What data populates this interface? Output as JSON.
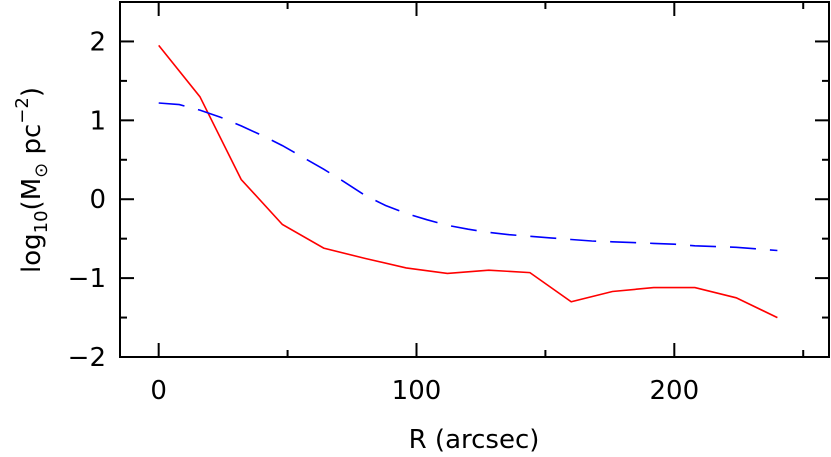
{
  "chart_data": {
    "type": "line",
    "title": "",
    "xlabel": "R (arcsec)",
    "ylabel": {
      "prefix": "log",
      "sub": "10",
      "mid": "(M",
      "sun": "⊙",
      "unit": " pc",
      "sup": "−2",
      "suffix": ")"
    },
    "xlim": [
      -15,
      260
    ],
    "ylim": [
      -2,
      2.5
    ],
    "x_ticks_major": [
      0,
      100,
      200
    ],
    "x_ticks_minor": [
      50,
      150,
      250
    ],
    "x_tick_labels": [
      "0",
      "100",
      "200"
    ],
    "y_ticks_major": [
      -2,
      -1,
      0,
      1,
      2
    ],
    "y_ticks_minor": [
      -1.5,
      -0.5,
      0.5,
      1.5
    ],
    "y_tick_labels": [
      "−2",
      "−1",
      "0",
      "1",
      "2"
    ],
    "grid": false,
    "series": [
      {
        "color": "#ff0000",
        "dash": "solid",
        "x": [
          0,
          16,
          32,
          48,
          64,
          80,
          96,
          112,
          128,
          144,
          160,
          176,
          192,
          208,
          224,
          240
        ],
        "y": [
          1.95,
          1.3,
          0.25,
          -0.32,
          -0.62,
          -0.75,
          -0.87,
          -0.94,
          -0.9,
          -0.93,
          -1.3,
          -1.17,
          -1.12,
          -1.12,
          -1.25,
          -1.5
        ]
      },
      {
        "color": "#0000ff",
        "dash": "dashed",
        "x": [
          0,
          8,
          16,
          24,
          32,
          40,
          48,
          56,
          64,
          72,
          80,
          88,
          96,
          104,
          112,
          120,
          128,
          136,
          144,
          152,
          160,
          168,
          176,
          184,
          192,
          200,
          208,
          216,
          224,
          232,
          240
        ],
        "y": [
          1.22,
          1.2,
          1.13,
          1.04,
          0.93,
          0.81,
          0.68,
          0.53,
          0.38,
          0.22,
          0.05,
          -0.08,
          -0.18,
          -0.26,
          -0.33,
          -0.38,
          -0.42,
          -0.45,
          -0.47,
          -0.49,
          -0.51,
          -0.53,
          -0.54,
          -0.55,
          -0.56,
          -0.57,
          -0.59,
          -0.6,
          -0.61,
          -0.63,
          -0.65
        ]
      }
    ]
  }
}
